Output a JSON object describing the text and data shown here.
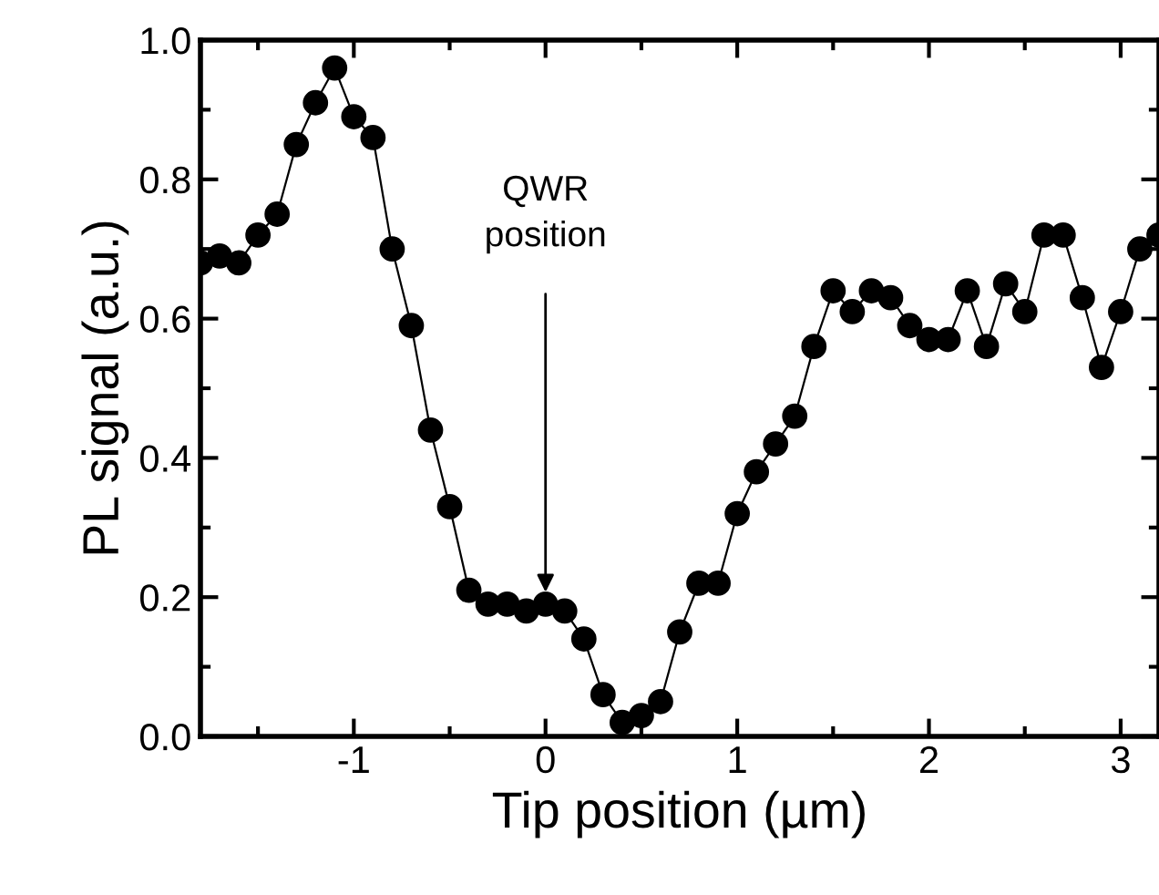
{
  "chart_data": {
    "type": "line",
    "xlabel": "Tip position (µm)",
    "ylabel": "PL signal (a.u.)",
    "x": [
      -1.8,
      -1.7,
      -1.6,
      -1.5,
      -1.4,
      -1.3,
      -1.2,
      -1.1,
      -1.0,
      -0.9,
      -0.8,
      -0.7,
      -0.6,
      -0.5,
      -0.4,
      -0.3,
      -0.2,
      -0.1,
      0.0,
      0.1,
      0.2,
      0.3,
      0.4,
      0.5,
      0.6,
      0.7,
      0.8,
      0.9,
      1.0,
      1.1,
      1.2,
      1.3,
      1.4,
      1.5,
      1.6,
      1.7,
      1.8,
      1.9,
      2.0,
      2.1,
      2.2,
      2.3,
      2.4,
      2.5,
      2.6,
      2.7,
      2.8,
      2.9,
      3.0,
      3.1,
      3.2
    ],
    "series": [
      {
        "color": "#000000",
        "values": [
          0.68,
          0.69,
          0.68,
          0.72,
          0.75,
          0.85,
          0.91,
          0.96,
          0.89,
          0.86,
          0.7,
          0.59,
          0.44,
          0.33,
          0.21,
          0.19,
          0.19,
          0.18,
          0.19,
          0.18,
          0.14,
          0.06,
          0.02,
          0.03,
          0.05,
          0.15,
          0.22,
          0.22,
          0.32,
          0.38,
          0.42,
          0.46,
          0.56,
          0.64,
          0.61,
          0.64,
          0.63,
          0.59,
          0.57,
          0.57,
          0.64,
          0.56,
          0.65,
          0.61,
          0.72,
          0.72,
          0.63,
          0.53,
          0.61,
          0.7,
          0.72
        ]
      }
    ],
    "xlim": [
      -1.8,
      3.2
    ],
    "ylim": [
      0,
      1.0
    ],
    "xticks": [
      {
        "value": -1,
        "label": "-1"
      },
      0,
      1,
      2,
      3
    ],
    "yticks": [
      {
        "value": 0,
        "label": "0.0"
      },
      0.2,
      0.4,
      0.6,
      0.8,
      {
        "value": 1.0,
        "label": "1.0"
      }
    ],
    "annotations": [
      {
        "text": "QWR\nposition",
        "x": 0,
        "y": 0.2
      }
    ],
    "marker": "circle",
    "line_style": "solid",
    "grid": false,
    "legend": false
  }
}
